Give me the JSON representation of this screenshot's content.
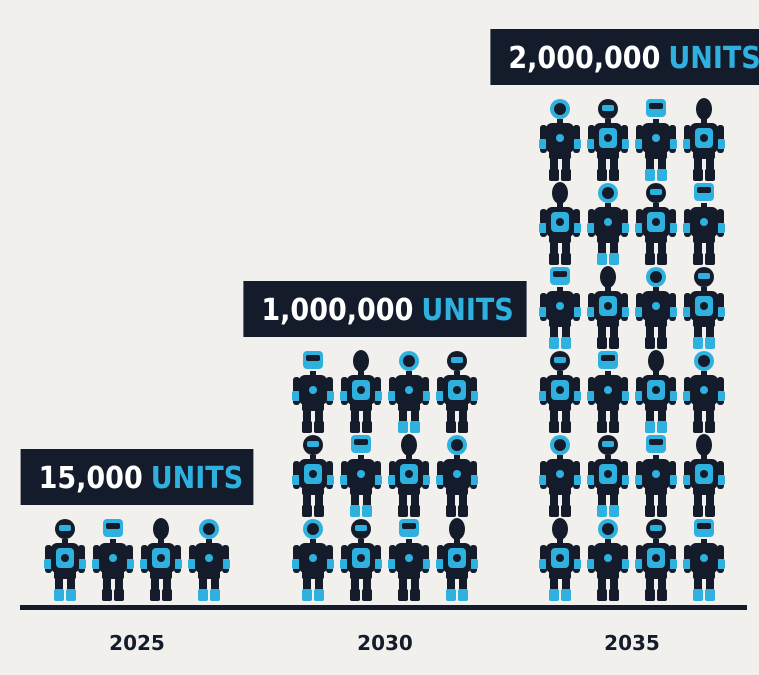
{
  "chart_data": {
    "type": "bar",
    "categories": [
      "2025",
      "2030",
      "2035"
    ],
    "values": [
      15000,
      1000000,
      2000000
    ],
    "value_labels": [
      "15,000",
      "1,000,000",
      "2,000,000"
    ],
    "unit_label": "UNITS",
    "title": "",
    "xlabel": "",
    "ylabel": "",
    "grid": false,
    "legend": "none",
    "icons_per_column": [
      4,
      12,
      24
    ]
  },
  "colors": {
    "background": "#f1f0ec",
    "robot_dark": "#141c2b",
    "robot_accent": "#2fb1e0",
    "label_box": "#141c2b",
    "label_text": "#ffffff",
    "baseline": "#141c2b"
  },
  "icons": {
    "unit_icon": "robot-icon"
  }
}
